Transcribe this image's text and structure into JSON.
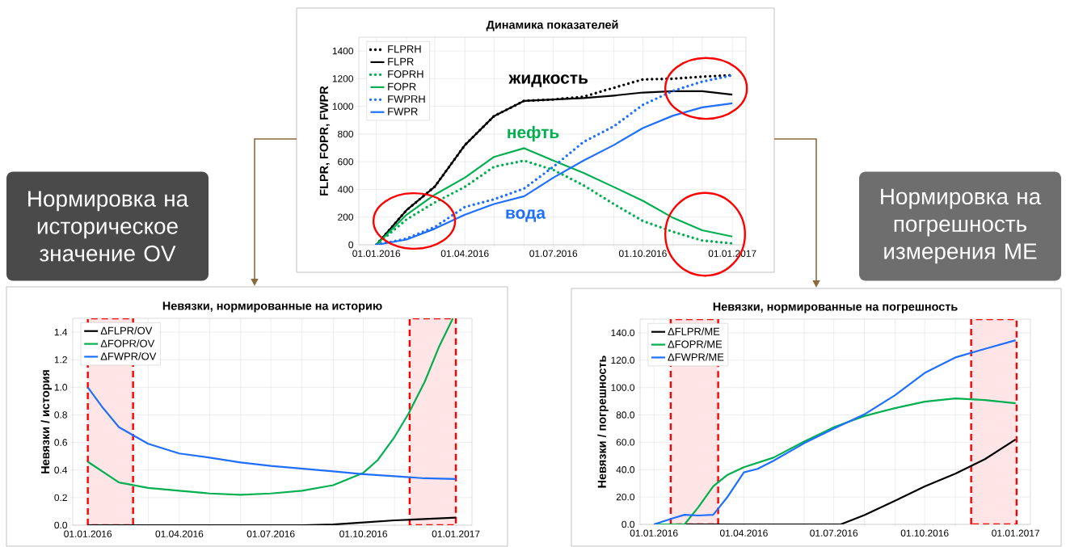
{
  "chart_data": [
    {
      "type": "line",
      "title": "Динамика показателей",
      "ylabel": "FLPR, FOPR, FWPR",
      "x": [
        "2016-01-01",
        "2016-02-01",
        "2016-03-01",
        "2016-04-01",
        "2016-05-01",
        "2016-06-01",
        "2016-07-01",
        "2016-08-01",
        "2016-09-01",
        "2016-10-01",
        "2016-11-01",
        "2016-12-01",
        "2017-01-01"
      ],
      "series": [
        {
          "name": "FLPRH",
          "color": "#000000",
          "line_style": "dotted",
          "values": [
            0,
            250,
            420,
            720,
            930,
            1040,
            1050,
            1070,
            1134,
            1195,
            1200,
            1215,
            1225
          ]
        },
        {
          "name": "FLPR",
          "color": "#000000",
          "line_style": "solid",
          "values": [
            0,
            250,
            420,
            720,
            930,
            1040,
            1050,
            1060,
            1078,
            1100,
            1110,
            1110,
            1085
          ]
        },
        {
          "name": "FOPRH",
          "color": "#00b050",
          "line_style": "dotted",
          "values": [
            0,
            183,
            306,
            418,
            564,
            608,
            541,
            430,
            295,
            172,
            94,
            31,
            10
          ]
        },
        {
          "name": "FOPR",
          "color": "#00b050",
          "line_style": "solid",
          "values": [
            0,
            217,
            362,
            485,
            635,
            698,
            608,
            519,
            418,
            318,
            195,
            105,
            60
          ]
        },
        {
          "name": "FWPRH",
          "color": "#1f6fff",
          "line_style": "dotted",
          "values": [
            0,
            45,
            128,
            273,
            329,
            407,
            564,
            743,
            855,
            1011,
            1112,
            1179,
            1224
          ]
        },
        {
          "name": "FWPR",
          "color": "#1f6fff",
          "line_style": "solid",
          "values": [
            0,
            38,
            116,
            217,
            295,
            351,
            485,
            608,
            720,
            843,
            933,
            993,
            1022
          ]
        }
      ],
      "annotations": [
        "жидкость",
        "нефть",
        "вода"
      ],
      "xlim": [
        "2015-12-14",
        "2017-01-15"
      ],
      "ylim": [
        0,
        1500
      ],
      "xticks": [
        {
          "value": "2016-01-01",
          "label": "01.01.2016"
        },
        {
          "value": "2016-02-01",
          "label": null
        },
        {
          "value": "2016-03-01",
          "label": null
        },
        {
          "value": "2016-04-01",
          "label": "01.04.2016"
        },
        {
          "value": "2016-05-01",
          "label": null
        },
        {
          "value": "2016-06-01",
          "label": null
        },
        {
          "value": "2016-07-01",
          "label": "01.07.2016"
        },
        {
          "value": "2016-08-01",
          "label": null
        },
        {
          "value": "2016-09-01",
          "label": null
        },
        {
          "value": "2016-10-01",
          "label": "01.10.2016"
        },
        {
          "value": "2016-11-01",
          "label": null
        },
        {
          "value": "2016-12-01",
          "label": null
        },
        {
          "value": "2017-01-01",
          "label": "01.01.2017"
        }
      ],
      "yticks": [
        0,
        200,
        400,
        600,
        800,
        1000,
        1200,
        1400
      ],
      "grid": true,
      "legend": "top left"
    },
    {
      "type": "line",
      "title": "Невязки, нормированные на историю",
      "ylabel": "Невязки / история",
      "series": [
        {
          "name": "ΔFLPR/OV",
          "color": "#000000",
          "x": [
            "2016-01-01",
            "2016-08-01",
            "2016-09-01",
            "2016-10-01",
            "2016-11-01",
            "2016-12-01",
            "2017-01-01"
          ],
          "values": [
            0,
            0,
            0.005,
            0.02,
            0.035,
            0.045,
            0.055
          ]
        },
        {
          "name": "ΔFOPR/OV",
          "color": "#00b050",
          "x": [
            "2016-01-01",
            "2016-02-01",
            "2016-03-01",
            "2016-04-01",
            "2016-05-01",
            "2016-06-01",
            "2016-07-01",
            "2016-08-01",
            "2016-09-01",
            "2016-10-01",
            "2016-10-15",
            "2016-11-01",
            "2016-11-15",
            "2016-12-01",
            "2016-12-15",
            "2016-12-29"
          ],
          "values": [
            0.46,
            0.31,
            0.27,
            0.25,
            0.23,
            0.22,
            0.23,
            0.25,
            0.29,
            0.38,
            0.47,
            0.64,
            0.81,
            1.04,
            1.29,
            1.5
          ]
        },
        {
          "name": "ΔFWPR/OV",
          "color": "#1f6fff",
          "x": [
            "2016-01-01",
            "2016-01-15",
            "2016-02-01",
            "2016-03-01",
            "2016-04-01",
            "2016-05-01",
            "2016-06-01",
            "2016-07-01",
            "2016-08-01",
            "2016-09-01",
            "2016-10-01",
            "2016-11-01",
            "2016-12-01",
            "2017-01-01"
          ],
          "values": [
            1.0,
            0.86,
            0.71,
            0.59,
            0.52,
            0.49,
            0.455,
            0.43,
            0.41,
            0.39,
            0.37,
            0.355,
            0.34,
            0.335
          ]
        }
      ],
      "xlim": [
        "2015-12-17",
        "2017-01-17"
      ],
      "ylim": [
        0,
        1.5
      ],
      "xticks": [
        {
          "value": "2016-01-01",
          "label": "01.01.2016"
        },
        {
          "value": "2016-02-01",
          "label": null
        },
        {
          "value": "2016-03-01",
          "label": null
        },
        {
          "value": "2016-04-01",
          "label": "01.04.2016"
        },
        {
          "value": "2016-05-01",
          "label": null
        },
        {
          "value": "2016-06-01",
          "label": null
        },
        {
          "value": "2016-07-01",
          "label": "01.07.2016"
        },
        {
          "value": "2016-08-01",
          "label": null
        },
        {
          "value": "2016-09-01",
          "label": null
        },
        {
          "value": "2016-10-01",
          "label": "01.10.2016"
        },
        {
          "value": "2016-11-01",
          "label": null
        },
        {
          "value": "2016-12-01",
          "label": null
        },
        {
          "value": "2017-01-01",
          "label": "01.01.2017"
        }
      ],
      "yticks": [
        {
          "value": 0,
          "label": "0.0"
        },
        0.2,
        0.4,
        0.6,
        0.8,
        {
          "value": 1,
          "label": "1.0"
        },
        1.2,
        1.4
      ],
      "bands": [
        {
          "axis": "x",
          "from": "2016-01-01",
          "to": "2016-02-15",
          "color": "#ffe5e5"
        },
        {
          "axis": "x",
          "from": "2016-11-16",
          "to": "2017-01-01",
          "color": "#ffe5e5"
        }
      ],
      "grid": true,
      "legend": "top left"
    },
    {
      "type": "line",
      "title": "Невязки, нормированные на погрешность",
      "ylabel": "Невязки / погрешность",
      "series": [
        {
          "name": "ΔFLPR/ME",
          "color": "#000000",
          "x": [
            "2016-01-01",
            "2016-07-08",
            "2016-08-01",
            "2016-09-01",
            "2016-10-01",
            "2016-11-01",
            "2016-12-01",
            "2017-01-01"
          ],
          "values": [
            0,
            0,
            6.8,
            17.3,
            27.8,
            37.1,
            47.7,
            62.1
          ]
        },
        {
          "name": "ΔFOPR/ME",
          "color": "#00b050",
          "x": [
            "2016-01-01",
            "2016-02-01",
            "2016-02-15",
            "2016-03-01",
            "2016-03-15",
            "2016-04-01",
            "2016-05-01",
            "2016-06-01",
            "2016-07-01",
            "2016-08-01",
            "2016-09-01",
            "2016-10-01",
            "2016-11-01",
            "2016-12-01",
            "2017-01-01"
          ],
          "values": [
            0,
            0,
            12.6,
            27.8,
            36,
            41.8,
            48.8,
            60.5,
            71,
            79.2,
            85,
            89.7,
            92,
            90.9,
            88.5
          ]
        },
        {
          "name": "ΔFWPR/ME",
          "color": "#1f6fff",
          "x": [
            "2016-01-01",
            "2016-01-20",
            "2016-02-01",
            "2016-02-15",
            "2016-03-01",
            "2016-03-15",
            "2016-04-01",
            "2016-04-15",
            "2016-05-01",
            "2016-06-01",
            "2016-07-01",
            "2016-08-01",
            "2016-09-01",
            "2016-10-01",
            "2016-11-01",
            "2016-12-01",
            "2017-01-01"
          ],
          "values": [
            0,
            4.4,
            7,
            6.5,
            7,
            19.6,
            38,
            40.6,
            46.5,
            59.3,
            70,
            80.4,
            94.4,
            110.7,
            122,
            128.3,
            134.6
          ]
        }
      ],
      "xlim": [
        "2015-12-18",
        "2017-01-16"
      ],
      "ylim": [
        0,
        150
      ],
      "xticks": [
        {
          "value": "2016-01-01",
          "label": "01.01.2016"
        },
        {
          "value": "2016-02-01",
          "label": null
        },
        {
          "value": "2016-03-01",
          "label": null
        },
        {
          "value": "2016-04-01",
          "label": "01.04.2016"
        },
        {
          "value": "2016-05-01",
          "label": null
        },
        {
          "value": "2016-06-01",
          "label": null
        },
        {
          "value": "2016-07-01",
          "label": "01.07.2016"
        },
        {
          "value": "2016-08-01",
          "label": null
        },
        {
          "value": "2016-09-01",
          "label": null
        },
        {
          "value": "2016-10-01",
          "label": "01.10.2016"
        },
        {
          "value": "2016-11-01",
          "label": null
        },
        {
          "value": "2016-12-01",
          "label": null
        },
        {
          "value": "2017-01-01",
          "label": "01.01.2017"
        }
      ],
      "yticks": [
        {
          "value": 0,
          "label": "0.0"
        },
        {
          "value": 20,
          "label": "20.0"
        },
        {
          "value": 40,
          "label": "40.0"
        },
        {
          "value": 60,
          "label": "60.0"
        },
        {
          "value": 80,
          "label": "80.0"
        },
        {
          "value": 100,
          "label": "100.0"
        },
        {
          "value": 120,
          "label": "120.0"
        },
        {
          "value": 140,
          "label": "140.0"
        }
      ],
      "bands": [
        {
          "axis": "x",
          "from": "2016-01-18",
          "to": "2016-03-06",
          "color": "#ffe5e5"
        },
        {
          "axis": "x",
          "from": "2016-11-17",
          "to": "2017-01-02",
          "color": "#ffe5e5"
        }
      ],
      "grid": true,
      "legend": "top left"
    },
    {
      "type": "other",
      "annotations": [
        "Нормировка на историческое значение OV",
        "Нормировка на погрешность измерения ME"
      ]
    }
  ]
}
